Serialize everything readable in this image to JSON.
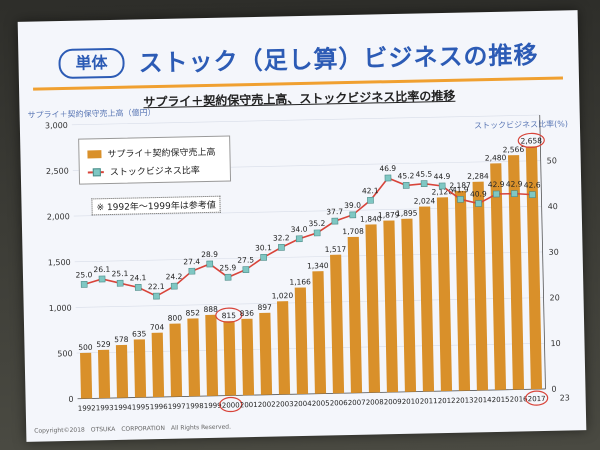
{
  "slide": {
    "badge": "単体",
    "title": "ストック（足し算）ビジネスの推移",
    "subtitle": "サプライ＋契約保守売上高、ストックビジネス比率の推移",
    "footer": "Copyright©2018　OTSUKA　CORPORATION　All Rights Reserved.",
    "page_number": "23"
  },
  "chart_data": {
    "type": "bar",
    "ylabel_left": "サプライ＋契約保守売上高（億円）",
    "ylabel_right": "ストックビジネス比率(%)",
    "left_ticks": [
      "0",
      "500",
      "1,000",
      "1,500",
      "2,000",
      "2,500",
      "3,000"
    ],
    "right_ticks": [
      "0",
      "10",
      "20",
      "30",
      "40",
      "50"
    ],
    "ylim_left": [
      0,
      3000
    ],
    "ylim_right": [
      0,
      60
    ],
    "note": "※ 1992年～1999年は参考値",
    "highlighted_categories": [
      "2000",
      "2017"
    ],
    "categories": [
      "1992",
      "1993",
      "1994",
      "1995",
      "1996",
      "1997",
      "1998",
      "1999",
      "2000",
      "2001",
      "2002",
      "2003",
      "2004",
      "2005",
      "2006",
      "2007",
      "2008",
      "2009",
      "2010",
      "2011",
      "2012",
      "2013",
      "2014",
      "2015",
      "2016",
      "2017"
    ],
    "series": [
      {
        "name": "サプライ＋契約保守売上高",
        "type": "bar",
        "axis": "left",
        "values": [
          500,
          529,
          578,
          635,
          704,
          800,
          852,
          888,
          815,
          836,
          897,
          1020,
          1166,
          1340,
          1517,
          1708,
          1840,
          1879,
          1895,
          2024,
          2120,
          2187,
          2284,
          2480,
          2566,
          2658
        ],
        "labels": [
          "500",
          "529",
          "578",
          "635",
          "704",
          "800",
          "852",
          "888",
          "815",
          "836",
          "897",
          "1,020",
          "1,166",
          "1,340",
          "1,517",
          "1,708",
          "1,840",
          "1,879",
          "1,895",
          "2,024",
          "2,120",
          "2,187",
          "2,284",
          "2,480",
          "2,566",
          "2,658"
        ]
      },
      {
        "name": "ストックビジネス比率",
        "type": "line",
        "axis": "right",
        "values": [
          25.0,
          26.1,
          25.1,
          24.1,
          22.1,
          24.2,
          27.4,
          28.9,
          25.9,
          27.5,
          30.1,
          32.2,
          34.0,
          35.2,
          37.7,
          39.0,
          42.1,
          46.9,
          45.2,
          45.5,
          44.9,
          41.9,
          40.9,
          42.9,
          42.9,
          42.6
        ],
        "labels": [
          "25.0",
          "26.1",
          "25.1",
          "24.1",
          "22.1",
          "24.2",
          "27.4",
          "28.9",
          "25.9",
          "27.5",
          "30.1",
          "32.2",
          "34.0",
          "35.2",
          "37.7",
          "39.0",
          "42.1",
          "46.9",
          "45.2",
          "45.5",
          "44.9",
          "41.9",
          "40.9",
          "42.9",
          "42.9",
          "42.6"
        ]
      }
    ],
    "colors": {
      "bar": "#d9902a",
      "line": "#d8443a",
      "marker": "#7fc7c3",
      "highlight": "#d8443a"
    }
  }
}
